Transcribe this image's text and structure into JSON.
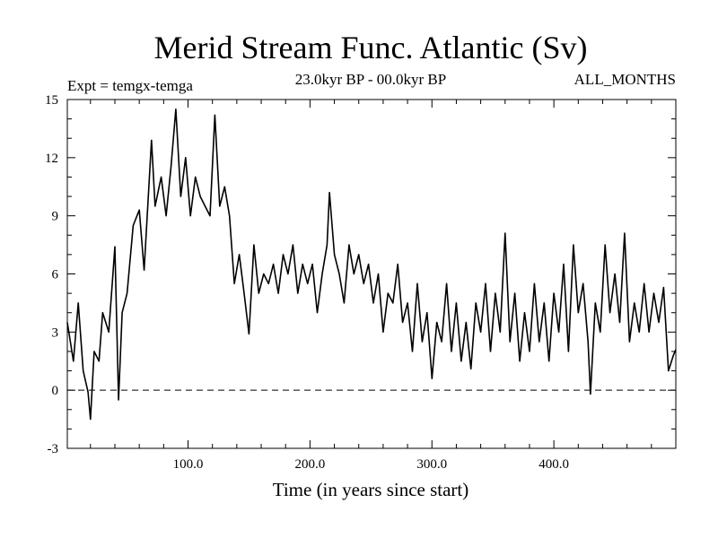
{
  "chart_data": {
    "type": "line",
    "title": "Merid Stream Func. Atlantic (Sv)",
    "subtitle_left": "Expt = temgx-temga",
    "subtitle_center": "23.0kyr BP - 00.0kyr BP",
    "subtitle_right": "ALL_MONTHS",
    "xlabel": "Time (in years since start)",
    "ylabel": "",
    "xlim": [
      1,
      500
    ],
    "ylim": [
      -3,
      15
    ],
    "xticks": [
      100,
      200,
      300,
      400
    ],
    "xtick_labels": [
      "100.0",
      "200.0",
      "300.0",
      "400.0"
    ],
    "yticks": [
      -3,
      0,
      3,
      6,
      9,
      12,
      15
    ],
    "ytick_labels": [
      "-3",
      "0",
      "3",
      "6",
      "9",
      "12",
      "15"
    ],
    "reference_line": {
      "y": 0,
      "style": "dashed"
    },
    "series": [
      {
        "name": "Merid Stream Func. Atlantic",
        "x": [
          1,
          6,
          10,
          14,
          18,
          20,
          23,
          27,
          30,
          35,
          40,
          43,
          46,
          50,
          55,
          60,
          64,
          70,
          73,
          78,
          82,
          86,
          90,
          94,
          98,
          102,
          106,
          110,
          114,
          118,
          122,
          126,
          130,
          134,
          138,
          142,
          146,
          150,
          154,
          158,
          162,
          166,
          170,
          174,
          178,
          182,
          186,
          190,
          194,
          198,
          202,
          206,
          210,
          214,
          216,
          220,
          224,
          228,
          232,
          236,
          240,
          244,
          248,
          252,
          256,
          260,
          264,
          268,
          272,
          276,
          280,
          284,
          288,
          292,
          296,
          300,
          304,
          308,
          312,
          316,
          320,
          324,
          328,
          332,
          336,
          340,
          344,
          348,
          352,
          356,
          360,
          364,
          368,
          372,
          376,
          380,
          384,
          388,
          392,
          396,
          400,
          404,
          408,
          412,
          416,
          420,
          424,
          428,
          430,
          434,
          438,
          442,
          446,
          450,
          454,
          458,
          462,
          466,
          470,
          474,
          478,
          482,
          486,
          490,
          494,
          498,
          500
        ],
        "values": [
          3.5,
          1.5,
          4.5,
          1.0,
          -0.1,
          -1.5,
          2.0,
          1.5,
          4.0,
          3.0,
          7.4,
          -0.5,
          4.0,
          5.0,
          8.5,
          9.3,
          6.2,
          12.9,
          9.5,
          11.0,
          9.0,
          11.5,
          14.5,
          10.0,
          12.0,
          9.0,
          11.0,
          10.0,
          9.5,
          9.0,
          14.2,
          9.5,
          10.5,
          9.0,
          5.5,
          7.0,
          5.0,
          2.9,
          7.5,
          5.0,
          6.0,
          5.5,
          6.5,
          5.0,
          7.0,
          6.0,
          7.5,
          5.0,
          6.5,
          5.5,
          6.5,
          4.0,
          6.0,
          7.5,
          10.2,
          7.0,
          6.0,
          4.5,
          7.5,
          6.0,
          7.0,
          5.5,
          6.5,
          4.5,
          6.0,
          3.0,
          5.0,
          4.5,
          6.5,
          3.5,
          4.5,
          2.0,
          5.5,
          2.5,
          4.0,
          0.6,
          3.5,
          2.5,
          5.5,
          2.0,
          4.5,
          1.5,
          3.5,
          1.1,
          4.5,
          3.0,
          5.5,
          2.0,
          5.0,
          3.0,
          8.1,
          2.5,
          5.0,
          1.5,
          4.0,
          2.0,
          5.5,
          2.5,
          4.5,
          1.5,
          5.0,
          3.0,
          6.5,
          2.0,
          7.5,
          4.0,
          5.5,
          2.5,
          -0.2,
          4.5,
          3.0,
          7.5,
          4.0,
          6.0,
          3.5,
          8.1,
          2.5,
          4.5,
          3.0,
          5.5,
          3.0,
          5.0,
          3.5,
          5.3,
          1.0,
          1.8,
          2.1
        ]
      }
    ]
  }
}
